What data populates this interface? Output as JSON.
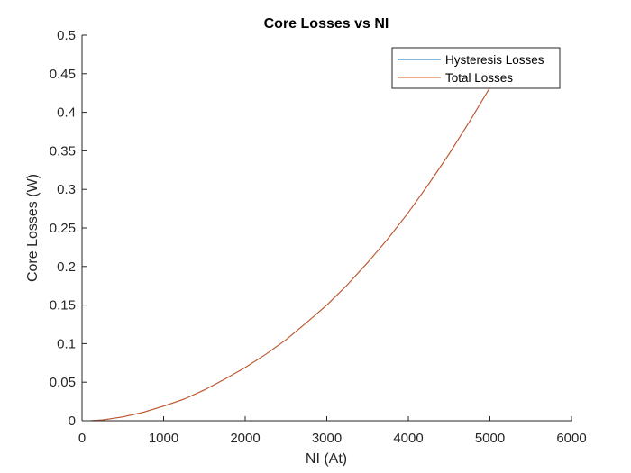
{
  "chart_data": {
    "type": "line",
    "title": "Core Losses vs NI",
    "xlabel": "NI (At)",
    "ylabel": "Core Losses (W)",
    "xlim": [
      0,
      6000
    ],
    "ylim": [
      0,
      0.5
    ],
    "xticks": [
      0,
      1000,
      2000,
      3000,
      4000,
      5000,
      6000
    ],
    "yticks": [
      0,
      0.05,
      0.1,
      0.15,
      0.2,
      0.25,
      0.3,
      0.35,
      0.4,
      0.45,
      0.5
    ],
    "grid": false,
    "legend_position": "top-right",
    "series": [
      {
        "name": "Hysteresis Losses",
        "color": "#0072BD",
        "x": [
          100,
          250,
          500,
          750,
          1000,
          1250,
          1500,
          1750,
          2000,
          2250,
          2500,
          2750,
          3000,
          3250,
          3500,
          3750,
          4000,
          4250,
          4500,
          4750,
          5000
        ],
        "y": [
          0.0,
          0.001,
          0.005,
          0.011,
          0.019,
          0.028,
          0.04,
          0.054,
          0.069,
          0.086,
          0.105,
          0.127,
          0.15,
          0.176,
          0.205,
          0.236,
          0.27,
          0.307,
          0.346,
          0.388,
          0.432
        ]
      },
      {
        "name": "Total Losses",
        "color": "#D95319",
        "x": [
          100,
          250,
          500,
          750,
          1000,
          1250,
          1500,
          1750,
          2000,
          2250,
          2500,
          2750,
          3000,
          3250,
          3500,
          3750,
          4000,
          4250,
          4500,
          4750,
          5000
        ],
        "y": [
          0.0,
          0.001,
          0.005,
          0.011,
          0.019,
          0.028,
          0.04,
          0.054,
          0.069,
          0.086,
          0.105,
          0.127,
          0.15,
          0.176,
          0.205,
          0.236,
          0.27,
          0.307,
          0.346,
          0.388,
          0.432
        ]
      }
    ]
  }
}
